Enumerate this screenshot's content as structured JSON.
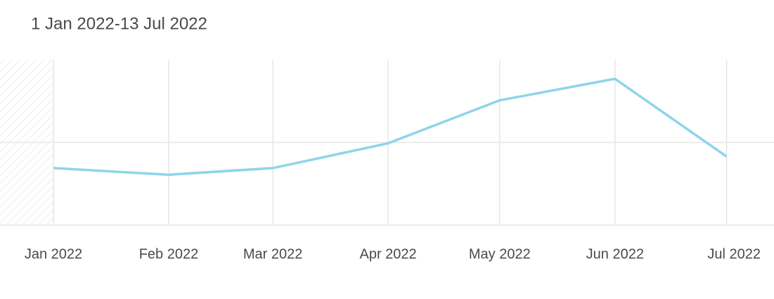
{
  "chart_data": {
    "type": "line",
    "title": "1 Jan 2022-13 Jul 2022",
    "x": [
      "Jan 2022",
      "Feb 2022",
      "Mar 2022",
      "Apr 2022",
      "May 2022",
      "Jun 2022",
      "Jul 2022"
    ],
    "series": [
      {
        "name": null,
        "color": "#8fd4ea",
        "values": [
          0.69,
          0.61,
          0.69,
          0.99,
          1.51,
          1.77,
          0.83
        ]
      }
    ],
    "ylim": [
      0,
      2
    ],
    "yticks": [
      0,
      1
    ],
    "grid": true
  }
}
